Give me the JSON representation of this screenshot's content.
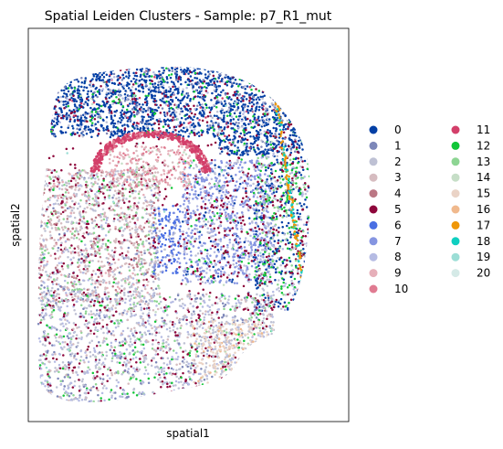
{
  "chart_data": {
    "type": "scatter",
    "title": "Spatial Leiden Clusters - Sample: p7_R1_mut",
    "xlabel": "spatial1",
    "ylabel": "spatial2",
    "grid": false,
    "legend_placement": "right-outside",
    "legend": [
      {
        "label": "0",
        "color": "#023fa5"
      },
      {
        "label": "1",
        "color": "#7d87b9"
      },
      {
        "label": "2",
        "color": "#bec1d4"
      },
      {
        "label": "3",
        "color": "#d6bcc0"
      },
      {
        "label": "4",
        "color": "#bb7784"
      },
      {
        "label": "5",
        "color": "#8e063b"
      },
      {
        "label": "6",
        "color": "#4a6fe3"
      },
      {
        "label": "7",
        "color": "#8595e1"
      },
      {
        "label": "8",
        "color": "#b5bbe3"
      },
      {
        "label": "9",
        "color": "#e6afb9"
      },
      {
        "label": "10",
        "color": "#e07b91"
      },
      {
        "label": "11",
        "color": "#d33f6a"
      },
      {
        "label": "12",
        "color": "#11c638"
      },
      {
        "label": "13",
        "color": "#8dd593"
      },
      {
        "label": "14",
        "color": "#c6dec7"
      },
      {
        "label": "15",
        "color": "#ead3c6"
      },
      {
        "label": "16",
        "color": "#f0b98d"
      },
      {
        "label": "17",
        "color": "#ef9708"
      },
      {
        "label": "18",
        "color": "#0fcfc0"
      },
      {
        "label": "19",
        "color": "#9cded6"
      },
      {
        "label": "20",
        "color": "#d5eae7"
      }
    ]
  }
}
